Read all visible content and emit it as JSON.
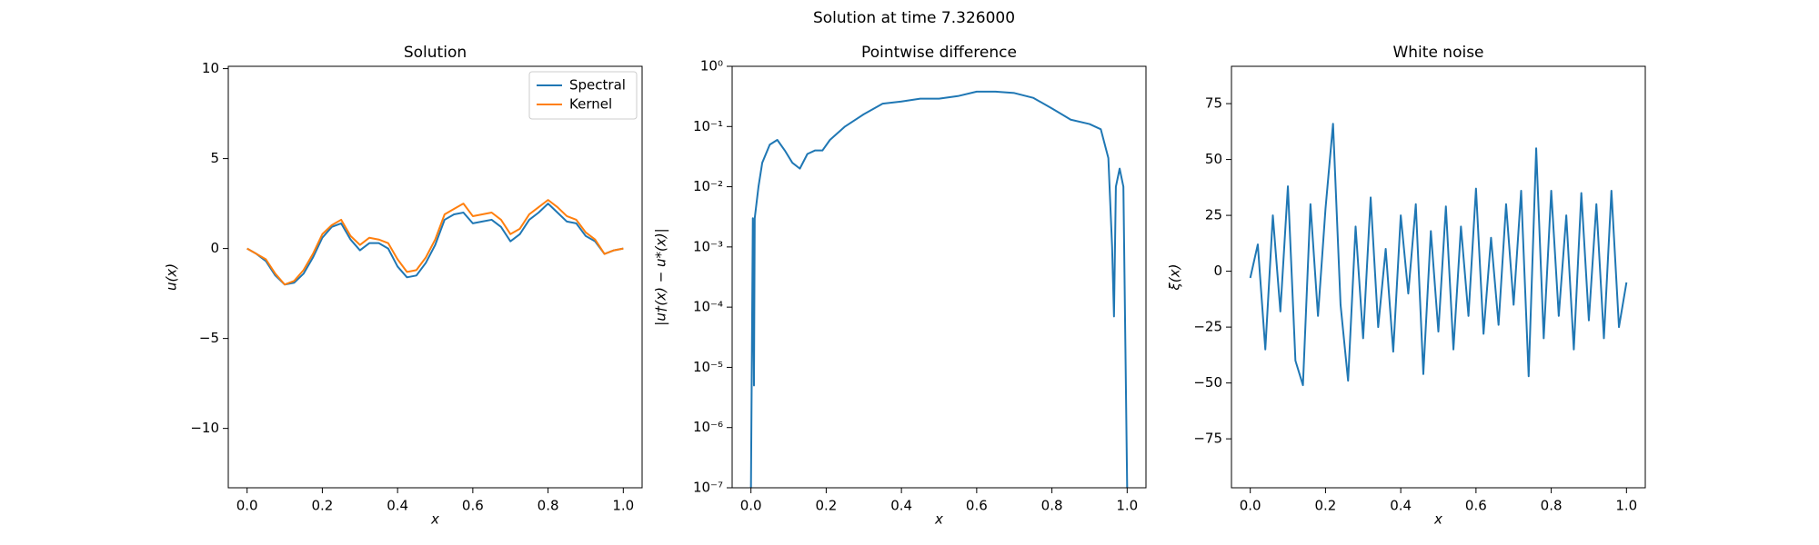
{
  "title": "Solution at time 7.326000",
  "chart_data": [
    {
      "type": "line",
      "title": "Solution",
      "xlabel": "x",
      "ylabel": "u(x)",
      "x": [
        0,
        0.025,
        0.05,
        0.075,
        0.1,
        0.125,
        0.15,
        0.175,
        0.2,
        0.225,
        0.25,
        0.275,
        0.3,
        0.325,
        0.35,
        0.375,
        0.4,
        0.425,
        0.45,
        0.475,
        0.5,
        0.525,
        0.55,
        0.575,
        0.6,
        0.625,
        0.65,
        0.675,
        0.7,
        0.725,
        0.75,
        0.775,
        0.8,
        0.825,
        0.85,
        0.875,
        0.9,
        0.925,
        0.95,
        0.975,
        1.0
      ],
      "series": [
        {
          "name": "Spectral",
          "color": "#1f77b4",
          "values": [
            0,
            -0.3,
            -0.7,
            -1.5,
            -2.0,
            -1.9,
            -1.4,
            -0.5,
            0.6,
            1.2,
            1.4,
            0.5,
            -0.1,
            0.3,
            0.3,
            0.0,
            -1.0,
            -1.6,
            -1.5,
            -0.8,
            0.2,
            1.6,
            1.9,
            2.0,
            1.4,
            1.5,
            1.6,
            1.2,
            0.4,
            0.8,
            1.6,
            2.0,
            2.5,
            2.0,
            1.5,
            1.4,
            0.7,
            0.4,
            -0.3,
            -0.1,
            0.0
          ]
        },
        {
          "name": "Kernel",
          "color": "#ff7f0e",
          "values": [
            0,
            -0.3,
            -0.6,
            -1.4,
            -2.0,
            -1.8,
            -1.2,
            -0.3,
            0.8,
            1.3,
            1.6,
            0.7,
            0.2,
            0.6,
            0.5,
            0.3,
            -0.6,
            -1.3,
            -1.2,
            -0.5,
            0.5,
            1.9,
            2.2,
            2.5,
            1.8,
            1.9,
            2.0,
            1.6,
            0.8,
            1.1,
            1.9,
            2.3,
            2.7,
            2.3,
            1.8,
            1.6,
            0.9,
            0.5,
            -0.3,
            -0.1,
            0.0
          ]
        }
      ],
      "xlim": [
        -0.05,
        1.05
      ],
      "xticks": [
        {
          "value": 0,
          "label": "0.0"
        },
        0.2,
        0.4,
        0.6,
        0.8,
        {
          "value": 1,
          "label": "1.0"
        }
      ],
      "ylim": [
        -13.3,
        10.13
      ],
      "yticks": [
        {
          "value": -10,
          "label": "−10"
        },
        {
          "value": -5,
          "label": "−5"
        },
        0,
        5,
        10
      ],
      "legend": "upper right"
    },
    {
      "type": "line",
      "title": "Pointwise difference",
      "xlabel": "x",
      "ylabel": "|u†(x) − u*(x)|",
      "yscale": "log",
      "x": [
        0,
        0.005,
        0.008,
        0.01,
        0.02,
        0.03,
        0.05,
        0.07,
        0.09,
        0.11,
        0.13,
        0.15,
        0.17,
        0.19,
        0.21,
        0.25,
        0.3,
        0.35,
        0.4,
        0.45,
        0.5,
        0.55,
        0.6,
        0.65,
        0.7,
        0.75,
        0.8,
        0.85,
        0.9,
        0.93,
        0.95,
        0.96,
        0.965,
        0.97,
        0.98,
        0.99,
        1.0
      ],
      "series": [
        {
          "name": null,
          "color": "#1f77b4",
          "values": [
            1e-07,
            0.003,
            5e-06,
            0.003,
            0.01,
            0.025,
            0.05,
            0.06,
            0.04,
            0.025,
            0.02,
            0.035,
            0.04,
            0.04,
            0.06,
            0.1,
            0.16,
            0.24,
            0.26,
            0.29,
            0.29,
            0.32,
            0.38,
            0.38,
            0.36,
            0.3,
            0.2,
            0.13,
            0.11,
            0.09,
            0.03,
            0.001,
            7e-05,
            0.01,
            0.02,
            0.01,
            1e-07
          ]
        }
      ],
      "xlim": [
        -0.05,
        1.05
      ],
      "xticks": [
        {
          "value": 0,
          "label": "0.0"
        },
        0.2,
        0.4,
        0.6,
        0.8,
        {
          "value": 1,
          "label": "1.0"
        }
      ],
      "ylim": [
        1e-07,
        1
      ],
      "yticks": [
        {
          "value": 1e-07,
          "label": "10⁻⁷"
        },
        {
          "value": 1e-06,
          "label": "10⁻⁶"
        },
        {
          "value": 1e-05,
          "label": "10⁻⁵"
        },
        {
          "value": 0.0001,
          "label": "10⁻⁴"
        },
        {
          "value": 0.001,
          "label": "10⁻³"
        },
        {
          "value": 0.01,
          "label": "10⁻²"
        },
        {
          "value": 0.1,
          "label": "10⁻¹"
        },
        {
          "value": 1,
          "label": "10⁰"
        }
      ]
    },
    {
      "type": "line",
      "title": "White noise",
      "xlabel": "x",
      "ylabel": "ξ(x)",
      "x": [
        0,
        0.02,
        0.04,
        0.06,
        0.08,
        0.1,
        0.12,
        0.14,
        0.16,
        0.18,
        0.2,
        0.22,
        0.24,
        0.26,
        0.28,
        0.3,
        0.32,
        0.34,
        0.36,
        0.38,
        0.4,
        0.42,
        0.44,
        0.46,
        0.48,
        0.5,
        0.52,
        0.54,
        0.56,
        0.58,
        0.6,
        0.62,
        0.64,
        0.66,
        0.68,
        0.7,
        0.72,
        0.74,
        0.76,
        0.78,
        0.8,
        0.82,
        0.84,
        0.86,
        0.88,
        0.9,
        0.92,
        0.94,
        0.96,
        0.98,
        1.0
      ],
      "series": [
        {
          "name": null,
          "color": "#1f77b4",
          "values": [
            -3,
            12,
            -35,
            25,
            -18,
            38,
            -40,
            -51,
            30,
            -20,
            28,
            66,
            -15,
            -49,
            20,
            -30,
            33,
            -25,
            10,
            -36,
            25,
            -10,
            30,
            -46,
            18,
            -27,
            29,
            -35,
            20,
            -20,
            37,
            -28,
            15,
            -24,
            30,
            -15,
            36,
            -47,
            55,
            -30,
            36,
            -20,
            25,
            -35,
            35,
            -22,
            30,
            -30,
            36,
            -25,
            -5
          ]
        }
      ],
      "xlim": [
        -0.05,
        1.05
      ],
      "xticks": [
        {
          "value": 0,
          "label": "0.0"
        },
        0.2,
        0.4,
        0.6,
        0.8,
        {
          "value": 1,
          "label": "1.0"
        }
      ],
      "ylim": [
        -96.9,
        91.7
      ],
      "yticks": [
        {
          "value": -75,
          "label": "−75"
        },
        {
          "value": -50,
          "label": "−50"
        },
        {
          "value": -25,
          "label": "−25"
        },
        0,
        25,
        50,
        75
      ]
    }
  ]
}
